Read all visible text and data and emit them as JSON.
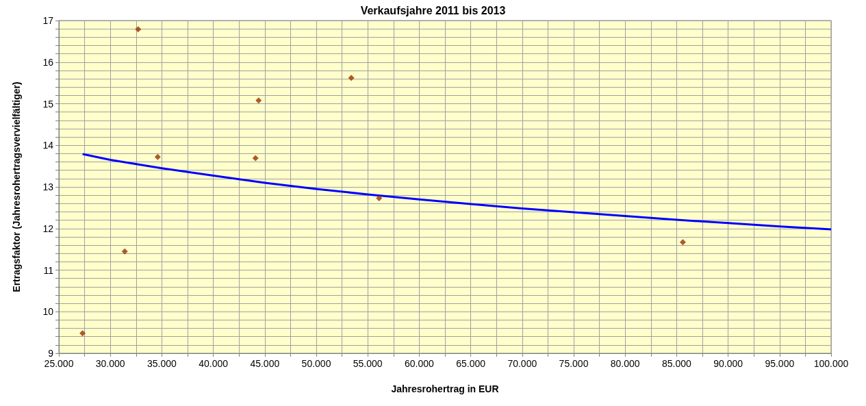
{
  "chart_data": {
    "type": "scatter",
    "title": "Verkaufsjahre 2011 bis 2013",
    "xlabel": "Jahresrohertrag in EUR",
    "ylabel": "Ertragsfaktor (Jahresrohertragsvervielfältiger)",
    "series": [
      {
        "color": "#993300",
        "marker": "diamond",
        "x": [
          27300,
          31400,
          32700,
          34600,
          44100,
          44400,
          53400,
          56100,
          85600
        ],
        "values": [
          9.48,
          11.45,
          16.79,
          13.72,
          13.69,
          15.08,
          15.62,
          12.73,
          11.67
        ]
      },
      {
        "type": "line",
        "color": "#0000ff",
        "marker": "none",
        "x": [
          27300,
          30000,
          35000,
          40000,
          45000,
          50000,
          55000,
          60000,
          65000,
          70000,
          75000,
          80000,
          85000,
          90000,
          95000,
          100000
        ],
        "values": [
          13.79,
          13.65,
          13.45,
          13.27,
          13.1,
          12.95,
          12.82,
          12.7,
          12.59,
          12.48,
          12.39,
          12.3,
          12.21,
          12.13,
          12.05,
          11.98
        ]
      }
    ],
    "xlim": [
      25000,
      100000
    ],
    "xticks": [
      {
        "value": 25000,
        "label": "25.000"
      },
      {
        "value": 27500,
        "label": null
      },
      {
        "value": 30000,
        "label": "30.000"
      },
      {
        "value": 32500,
        "label": null
      },
      {
        "value": 35000,
        "label": "35.000"
      },
      {
        "value": 37500,
        "label": null
      },
      {
        "value": 40000,
        "label": "40.000"
      },
      {
        "value": 42500,
        "label": null
      },
      {
        "value": 45000,
        "label": "45.000"
      },
      {
        "value": 47500,
        "label": null
      },
      {
        "value": 50000,
        "label": "50.000"
      },
      {
        "value": 52500,
        "label": null
      },
      {
        "value": 55000,
        "label": "55.000"
      },
      {
        "value": 57500,
        "label": null
      },
      {
        "value": 60000,
        "label": "60.000"
      },
      {
        "value": 62500,
        "label": null
      },
      {
        "value": 65000,
        "label": "65.000"
      },
      {
        "value": 67500,
        "label": null
      },
      {
        "value": 70000,
        "label": "70.000"
      },
      {
        "value": 72500,
        "label": null
      },
      {
        "value": 75000,
        "label": "75.000"
      },
      {
        "value": 77500,
        "label": null
      },
      {
        "value": 80000,
        "label": "80.000"
      },
      {
        "value": 82500,
        "label": null
      },
      {
        "value": 85000,
        "label": "85.000"
      },
      {
        "value": 87500,
        "label": null
      },
      {
        "value": 90000,
        "label": "90.000"
      },
      {
        "value": 92500,
        "label": null
      },
      {
        "value": 95000,
        "label": "95.000"
      },
      {
        "value": 97500,
        "label": null
      },
      {
        "value": 100000,
        "label": "100.000"
      }
    ],
    "ylim": [
      9,
      17
    ],
    "yticks": [
      9,
      {
        "value": 9.2,
        "label": null
      },
      {
        "value": 9.4,
        "label": null
      },
      {
        "value": 9.6,
        "label": null
      },
      {
        "value": 9.8,
        "label": null
      },
      10,
      {
        "value": 10.2,
        "label": null
      },
      {
        "value": 10.4,
        "label": null
      },
      {
        "value": 10.6,
        "label": null
      },
      {
        "value": 10.8,
        "label": null
      },
      11,
      {
        "value": 11.2,
        "label": null
      },
      {
        "value": 11.4,
        "label": null
      },
      {
        "value": 11.6,
        "label": null
      },
      {
        "value": 11.8,
        "label": null
      },
      12,
      {
        "value": 12.2,
        "label": null
      },
      {
        "value": 12.4,
        "label": null
      },
      {
        "value": 12.6,
        "label": null
      },
      {
        "value": 12.8,
        "label": null
      },
      13,
      {
        "value": 13.2,
        "label": null
      },
      {
        "value": 13.4,
        "label": null
      },
      {
        "value": 13.6,
        "label": null
      },
      {
        "value": 13.8,
        "label": null
      },
      14,
      {
        "value": 14.2,
        "label": null
      },
      {
        "value": 14.4,
        "label": null
      },
      {
        "value": 14.6,
        "label": null
      },
      {
        "value": 14.8,
        "label": null
      },
      15,
      {
        "value": 15.2,
        "label": null
      },
      {
        "value": 15.4,
        "label": null
      },
      {
        "value": 15.6,
        "label": null
      },
      {
        "value": 15.8,
        "label": null
      },
      16,
      {
        "value": 16.2,
        "label": null
      },
      {
        "value": 16.4,
        "label": null
      },
      {
        "value": 16.6,
        "label": null
      },
      {
        "value": 16.8,
        "label": null
      },
      17
    ],
    "grid": true
  }
}
